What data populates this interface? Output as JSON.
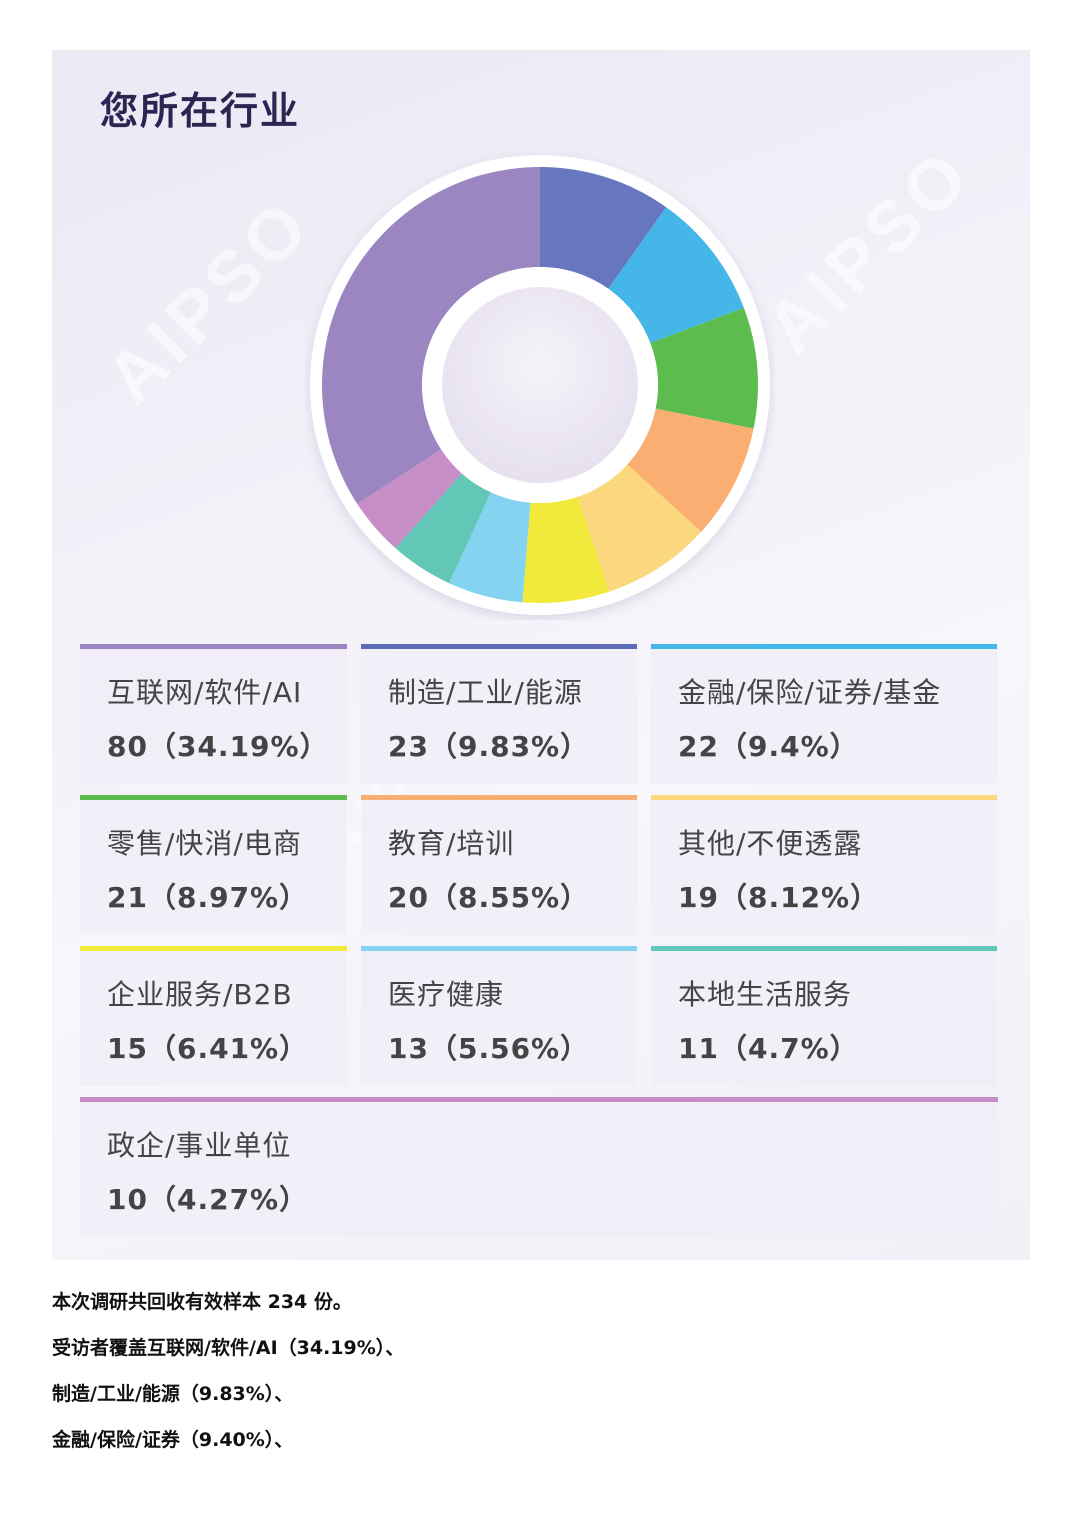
{
  "page_title": "您所在行业",
  "chart_data": {
    "type": "pie",
    "donut": true,
    "title": "您所在行业",
    "total": 234,
    "series": [
      {
        "label": "互联网/软件/AI",
        "value": 80,
        "percent": "34.19%",
        "color": "#9b86c1"
      },
      {
        "label": "制造/工业/能源",
        "value": 23,
        "percent": "9.83%",
        "color": "#6677bf"
      },
      {
        "label": "金融/保险/证券/基金",
        "value": 22,
        "percent": "9.4%",
        "color": "#45b6e8"
      },
      {
        "label": "零售/快消/电商",
        "value": 21,
        "percent": "8.97%",
        "color": "#5cbd4e"
      },
      {
        "label": "教育/培训",
        "value": 20,
        "percent": "8.55%",
        "color": "#fbae72"
      },
      {
        "label": "其他/不便透露",
        "value": 19,
        "percent": "8.12%",
        "color": "#fbd77d"
      },
      {
        "label": "企业服务/B2B",
        "value": 15,
        "percent": "6.41%",
        "color": "#f2ea3b"
      },
      {
        "label": "医疗健康",
        "value": 13,
        "percent": "5.56%",
        "color": "#83d3f1"
      },
      {
        "label": "本地生活服务",
        "value": 11,
        "percent": "4.7%",
        "color": "#62c7b6"
      },
      {
        "label": "政企/事业单位",
        "value": 10,
        "percent": "4.27%",
        "color": "#c78dc6"
      }
    ]
  },
  "legend": [
    {
      "name": "互联网/软件/AI",
      "count": "80（34.19%）",
      "color": "#9b86c1"
    },
    {
      "name": "制造/工业/能源",
      "count": "23（9.83%）",
      "color": "#5b6bb8"
    },
    {
      "name": "金融/保险/证券/基金",
      "count": "22（9.4%）",
      "color": "#45b6e8"
    },
    {
      "name": "零售/快消/电商",
      "count": "21（8.97%）",
      "color": "#5cbd4e"
    },
    {
      "name": "教育/培训",
      "count": "20（8.55%）",
      "color": "#fbae72"
    },
    {
      "name": "其他/不便透露",
      "count": "19（8.12%）",
      "color": "#fbd77d"
    },
    {
      "name": "企业服务/B2B",
      "count": "15（6.41%）",
      "color": "#f2ea3b"
    },
    {
      "name": "医疗健康",
      "count": "13（5.56%）",
      "color": "#83d3f1"
    },
    {
      "name": "本地生活服务",
      "count": "11（4.7%）",
      "color": "#62c7b6"
    },
    {
      "name": "政企/事业单位",
      "count": "10（4.27%）",
      "color": "#c78dc6"
    }
  ],
  "summary": {
    "line1": "本次调研共回收有效样本 234 份。",
    "line2": "受访者覆盖互联网/软件/AI（34.19%）、",
    "line3": "制造/工业/能源（9.83%）、",
    "line4": "金融/保险/证券（9.40%）、"
  }
}
